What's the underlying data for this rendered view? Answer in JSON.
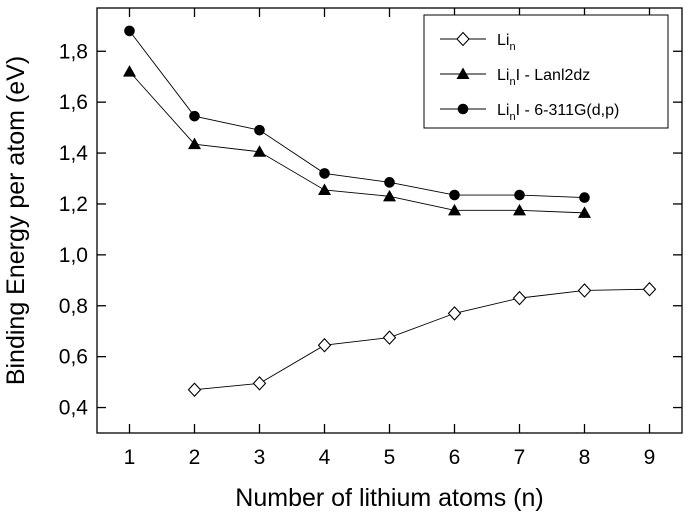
{
  "chart_data": {
    "type": "line",
    "xlabel": "Number of lithium atoms (n)",
    "ylabel": "Binding Energy per atom (eV)",
    "xlim": [
      0.5,
      9.5
    ],
    "ylim": [
      0.3,
      1.97
    ],
    "x_ticks": [
      1,
      2,
      3,
      4,
      5,
      6,
      7,
      8,
      9
    ],
    "x_tick_labels": [
      "1",
      "2",
      "3",
      "4",
      "5",
      "6",
      "7",
      "8",
      "9"
    ],
    "y_ticks": [
      0.4,
      0.6,
      0.8,
      1.0,
      1.2,
      1.4,
      1.6,
      1.8
    ],
    "y_tick_labels": [
      "0,4",
      "0,6",
      "0,8",
      "1,0",
      "1,2",
      "1,4",
      "1,6",
      "1,8"
    ],
    "grid": false,
    "legend_position": "top-right",
    "series": [
      {
        "name": "Li_n",
        "legend_main": "Li",
        "legend_sub": "n",
        "legend_rest": "",
        "marker": "open-diamond",
        "x": [
          2,
          3,
          4,
          5,
          6,
          7,
          8,
          9
        ],
        "values": [
          0.47,
          0.495,
          0.645,
          0.675,
          0.77,
          0.83,
          0.86,
          0.865
        ]
      },
      {
        "name": "Li_nI - Lanl2dz",
        "legend_main": "Li",
        "legend_sub": "n",
        "legend_rest": "I - Lanl2dz",
        "marker": "filled-triangle",
        "x": [
          1,
          2,
          3,
          4,
          5,
          6,
          7,
          8
        ],
        "values": [
          1.72,
          1.435,
          1.405,
          1.255,
          1.23,
          1.175,
          1.175,
          1.165
        ]
      },
      {
        "name": "Li_nI - 6-311G(d,p)",
        "legend_main": "Li",
        "legend_sub": "n",
        "legend_rest": "I - 6-311G(d,p)",
        "marker": "filled-circle",
        "x": [
          1,
          2,
          3,
          4,
          5,
          6,
          7,
          8
        ],
        "values": [
          1.88,
          1.545,
          1.49,
          1.32,
          1.285,
          1.235,
          1.235,
          1.225
        ]
      }
    ]
  }
}
